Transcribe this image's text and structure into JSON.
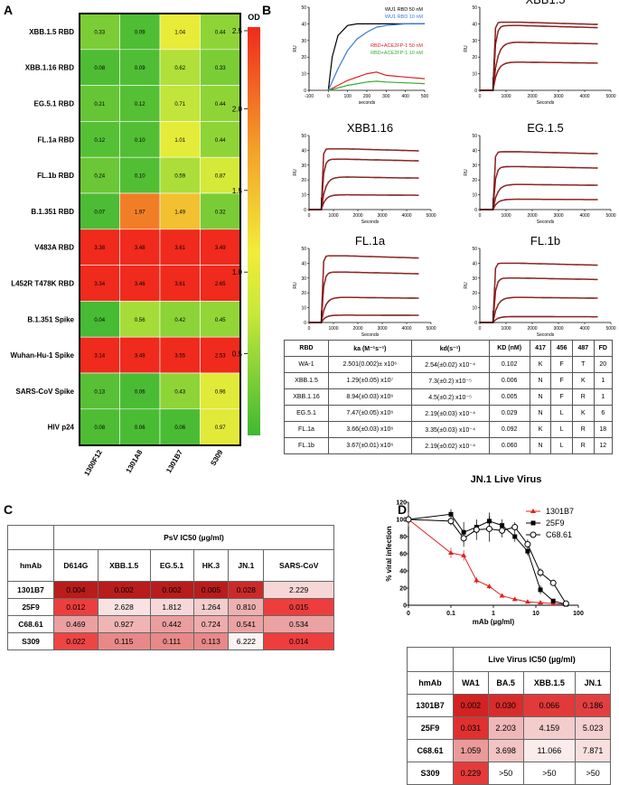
{
  "panels": {
    "a": "A",
    "b": "B",
    "c": "C",
    "d": "D"
  },
  "heatmap": {
    "legend_title": "OD",
    "legend_ticks": [
      "2.5",
      "2.0",
      "1.5",
      "1.0",
      "0.5"
    ],
    "legend_tick_values": [
      2.5,
      2.0,
      1.5,
      1.0,
      0.5
    ],
    "columns": [
      "1300F12",
      "1301A8",
      "1301B7",
      "S309"
    ],
    "rows": [
      "XBB.1.5 RBD",
      "XBB.1.16 RBD",
      "EG.5.1 RBD",
      "FL.1a RBD",
      "FL.1b RBD",
      "B.1.351 RBD",
      "V483A RBD",
      "L452R T478K RBD",
      "B.1.351 Spike",
      "Wuhan-Hu-1 Spike",
      "SARS-CoV Spike",
      "HIV p24"
    ],
    "values": [
      [
        "0.33",
        "0.09",
        "1.04",
        "0.44"
      ],
      [
        "0.08",
        "0.09",
        "0.62",
        "0.33"
      ],
      [
        "0.21",
        "0.12",
        "0.71",
        "0.44"
      ],
      [
        "0.12",
        "0.10",
        "1.01",
        "0.44"
      ],
      [
        "0.24",
        "0.10",
        "0.59",
        "0.87"
      ],
      [
        "0.07",
        "1.97",
        "1.49",
        "0.32"
      ],
      [
        "3.38",
        "3.48",
        "3.61",
        "3.49"
      ],
      [
        "3.34",
        "3.46",
        "3.61",
        "2.65"
      ],
      [
        "0.04",
        "0.56",
        "0.42",
        "0.45"
      ],
      [
        "3.14",
        "3.48",
        "3.55",
        "2.53"
      ],
      [
        "0.13",
        "0.06",
        "0.43",
        "0.96"
      ],
      [
        "0.08",
        "0.06",
        "0.06",
        "0.97"
      ]
    ]
  },
  "spr": {
    "axis_y": "RU",
    "axis_x_first": "seconds",
    "axis_x": "Seconds",
    "plots": [
      {
        "title": "",
        "legend": [
          "WU1 RBD 50 nM",
          "WU1 RBD 10 nM",
          "RBD+ACE2FP-1 50 nM",
          "RBD+ACE2FP-1 10 nM"
        ],
        "legend_colors": [
          "#000000",
          "#3a78d6",
          "#e02020",
          "#2fae2f"
        ],
        "xticks": [
          "-100",
          "0",
          "100",
          "200",
          "300",
          "400",
          "500"
        ],
        "yticks": [
          "0",
          "10",
          "20",
          "30",
          "40",
          "50"
        ]
      },
      {
        "title": "XBB1.5",
        "xticks": [
          "0",
          "1000",
          "2000",
          "3000",
          "4000",
          "5000"
        ],
        "yticks": [
          "0",
          "10",
          "20",
          "30",
          "40",
          "50"
        ]
      },
      {
        "title": "XBB1.16",
        "xticks": [
          "0",
          "1000",
          "2000",
          "3000",
          "4000",
          "5000"
        ],
        "yticks": [
          "0",
          "10",
          "20",
          "30",
          "40",
          "50"
        ]
      },
      {
        "title": "EG.1.5",
        "xticks": [
          "0",
          "1000",
          "2000",
          "3000",
          "4000",
          "5000"
        ],
        "yticks": [
          "0",
          "10",
          "20",
          "30",
          "40",
          "50"
        ]
      },
      {
        "title": "FL.1a",
        "xticks": [
          "0",
          "1000",
          "2000",
          "3000",
          "4000",
          "5000"
        ],
        "yticks": [
          "0",
          "10",
          "20",
          "30",
          "40",
          "50"
        ]
      },
      {
        "title": "FL.1b",
        "xticks": [
          "0",
          "1000",
          "2000",
          "3000",
          "4000",
          "5000"
        ],
        "yticks": [
          "0",
          "10",
          "20",
          "30",
          "40",
          "50"
        ]
      }
    ],
    "table": {
      "headers": [
        "RBD",
        "ka (M⁻¹s⁻¹)",
        "kd(s⁻¹)",
        "KD (nM)",
        "417",
        "456",
        "487",
        "FD"
      ],
      "rows": [
        [
          "WA-1",
          "2.501(0.002)± x10⁶",
          "2.54(±0.02) x10⁻⁴",
          "0.102",
          "K",
          "F",
          "T",
          "20"
        ],
        [
          "XBB.1.5",
          "1.29(±0.05) x10⁷",
          "7.3(±0.2) x10⁻⁵",
          "0.006",
          "N",
          "F",
          "K",
          "1"
        ],
        [
          "XBB.1.16",
          "8.94(±0.03) x10⁶",
          "4.5(±0.2) x10⁻⁵",
          "0.005",
          "N",
          "F",
          "R",
          "1"
        ],
        [
          "EG.5.1",
          "7.47(±0.05) x10⁶",
          "2.19(±0.03) x10⁻⁴",
          "0.029",
          "N",
          "L",
          "K",
          "6"
        ],
        [
          "FL.1a",
          "3.66(±0.03) x10⁶",
          "3.35(±0.03) x10⁻⁴",
          "0.092",
          "K",
          "L",
          "R",
          "18"
        ],
        [
          "FL.1b",
          "3.67(±0.01) x10⁶",
          "2.19(±0.02) x10⁻⁴",
          "0.060",
          "N",
          "L",
          "R",
          "12"
        ]
      ]
    }
  },
  "psv": {
    "header": "PsV IC50 (µg/ml)",
    "row_header": "hmAb",
    "columns": [
      "D614G",
      "XBB.1.5",
      "EG.5.1",
      "HK.3",
      "JN.1",
      "SARS-CoV"
    ],
    "rows": [
      {
        "name": "1301B7",
        "values": [
          "0.004",
          "0.002",
          "0.002",
          "0.005",
          "0.028",
          "2.229"
        ],
        "colors": [
          "#b81c1c",
          "#b81c1c",
          "#b81c1c",
          "#b81c1c",
          "#cc2a2a",
          "#f6d6d6"
        ]
      },
      {
        "name": "25F9",
        "values": [
          "0.012",
          "2.628",
          "1.812",
          "1.264",
          "0.810",
          "0.015"
        ],
        "colors": [
          "#ee3d3d",
          "#f8e2e2",
          "#f6d8d8",
          "#f3cccc",
          "#eeb0b0",
          "#ee3d3d"
        ]
      },
      {
        "name": "C68.61",
        "values": [
          "0.469",
          "0.927",
          "0.442",
          "0.724",
          "0.541",
          "0.534"
        ],
        "colors": [
          "#eaa0a0",
          "#efb4b4",
          "#ea9e9e",
          "#eeacac",
          "#eaa2a2",
          "#eaa2a2"
        ]
      },
      {
        "name": "S309",
        "values": [
          "0.022",
          "0.115",
          "0.111",
          "0.113",
          "6.222",
          "0.014"
        ],
        "colors": [
          "#ef4444",
          "#e88888",
          "#e88888",
          "#e88888",
          "#fdf3f3",
          "#ee3d3d"
        ]
      }
    ]
  },
  "jn1": {
    "title": "JN.1 Live Virus",
    "ylabel": "% viral infection",
    "xlabel": "mAb (µg/ml)",
    "yticks": [
      "0",
      "20",
      "40",
      "60",
      "80",
      "100",
      "120"
    ],
    "xticks": [
      "0",
      "0.1",
      "1",
      "10",
      "100"
    ],
    "legend": [
      "1301B7",
      "25F9",
      "C68.61"
    ],
    "table": {
      "header": "Live Virus  IC50 (µg/ml)",
      "row_header": "hmAb",
      "columns": [
        "WA1",
        "BA.5",
        "XBB.1.5",
        "JN.1"
      ],
      "rows": [
        {
          "name": "1301B7",
          "values": [
            "0.002",
            "0.030",
            "0.066",
            "0.186"
          ],
          "colors": [
            "#d22222",
            "#d82c2c",
            "#e23a3a",
            "#e24040"
          ]
        },
        {
          "name": "25F9",
          "values": [
            "0.031",
            "2.203",
            "4.159",
            "5.023"
          ],
          "colors": [
            "#e13030",
            "#efb8b8",
            "#f3cccc",
            "#f4d0d0"
          ]
        },
        {
          "name": "C68.61",
          "values": [
            "1.059",
            "3.698",
            "11.066",
            "7.871"
          ],
          "colors": [
            "#ea9a9a",
            "#f2c4c4",
            "#fbecec",
            "#f8e0e0"
          ]
        },
        {
          "name": "S309",
          "values": [
            "0.229",
            ">50",
            ">50",
            ">50"
          ],
          "colors": [
            "#e53a3a",
            "#ffffff",
            "#ffffff",
            "#ffffff"
          ]
        }
      ]
    }
  },
  "chart_data": [
    {
      "type": "heatmap",
      "title": "",
      "colorbar_label": "OD",
      "colorbar_range": [
        0,
        2.5
      ],
      "x": [
        "1300F12",
        "1301A8",
        "1301B7",
        "S309"
      ],
      "y": [
        "XBB.1.5 RBD",
        "XBB.1.16 RBD",
        "EG.5.1 RBD",
        "FL.1a RBD",
        "FL.1b RBD",
        "B.1.351 RBD",
        "V483A RBD",
        "L452R T478K RBD",
        "B.1.351 Spike",
        "Wuhan-Hu-1 Spike",
        "SARS-CoV Spike",
        "HIV p24"
      ],
      "values": [
        [
          0.33,
          0.09,
          1.04,
          0.44
        ],
        [
          0.08,
          0.09,
          0.62,
          0.33
        ],
        [
          0.21,
          0.12,
          0.71,
          0.44
        ],
        [
          0.12,
          0.1,
          1.01,
          0.44
        ],
        [
          0.24,
          0.1,
          0.59,
          0.87
        ],
        [
          0.07,
          1.97,
          1.49,
          0.32
        ],
        [
          3.38,
          3.48,
          3.61,
          3.49
        ],
        [
          3.34,
          3.46,
          3.61,
          2.65
        ],
        [
          0.04,
          0.56,
          0.42,
          0.45
        ],
        [
          3.14,
          3.48,
          3.55,
          2.53
        ],
        [
          0.13,
          0.06,
          0.43,
          0.96
        ],
        [
          0.08,
          0.06,
          0.06,
          0.97
        ]
      ]
    },
    {
      "type": "line",
      "title": "",
      "xlabel": "seconds",
      "ylabel": "RU",
      "xlim": [
        -100,
        500
      ],
      "ylim": [
        0,
        50
      ],
      "series": [
        {
          "name": "WU1 RBD 50 nM",
          "color": "#000000",
          "x": [
            0,
            20,
            50,
            100,
            150,
            200,
            300,
            400,
            500
          ],
          "y": [
            0,
            20,
            33,
            39,
            40,
            40,
            40,
            40,
            40
          ]
        },
        {
          "name": "WU1 RBD 10 nM",
          "color": "#3a78d6",
          "x": [
            0,
            50,
            100,
            150,
            200,
            250,
            300,
            400,
            500
          ],
          "y": [
            0,
            13,
            24,
            31,
            35,
            38,
            39,
            40,
            40
          ]
        },
        {
          "name": "RBD+ACE2FP-1 50 nM",
          "color": "#e02020",
          "x": [
            0,
            100,
            200,
            250,
            300,
            400,
            500
          ],
          "y": [
            0,
            6,
            10,
            11,
            9,
            8,
            7
          ]
        },
        {
          "name": "RBD+ACE2FP-1 10 nM",
          "color": "#2fae2f",
          "x": [
            0,
            100,
            200,
            250,
            300,
            400,
            500
          ],
          "y": [
            0,
            3,
            5,
            5.5,
            5,
            4.5,
            4
          ]
        }
      ]
    },
    {
      "type": "line",
      "title": "XBB1.5",
      "xlabel": "Seconds",
      "ylabel": "RU",
      "xlim": [
        0,
        5000
      ],
      "ylim": [
        0,
        50
      ],
      "plateaus": [
        41,
        39,
        29,
        17
      ]
    },
    {
      "type": "line",
      "title": "XBB1.16",
      "xlabel": "Seconds",
      "ylabel": "RU",
      "xlim": [
        0,
        5000
      ],
      "ylim": [
        0,
        50
      ],
      "plateaus": [
        41,
        34,
        22,
        10
      ]
    },
    {
      "type": "line",
      "title": "EG.1.5",
      "xlabel": "Seconds",
      "ylabel": "RU",
      "xlim": [
        0,
        5000
      ],
      "ylim": [
        0,
        50
      ],
      "plateaus": [
        39,
        29,
        17,
        7
      ]
    },
    {
      "type": "line",
      "title": "FL.1a",
      "xlabel": "Seconds",
      "ylabel": "RU",
      "xlim": [
        0,
        5000
      ],
      "ylim": [
        0,
        50
      ],
      "plateaus": [
        45,
        34,
        17,
        5
      ]
    },
    {
      "type": "line",
      "title": "FL.1b",
      "xlabel": "Seconds",
      "ylabel": "RU",
      "xlim": [
        0,
        5000
      ],
      "ylim": [
        0,
        50
      ],
      "plateaus": [
        40,
        30,
        17,
        4
      ]
    },
    {
      "type": "line",
      "title": "JN.1 Live Virus",
      "xlabel": "mAb (µg/ml)",
      "ylabel": "% viral infection",
      "xscale": "log",
      "ylim": [
        0,
        120
      ],
      "series": [
        {
          "name": "1301B7",
          "color": "#e02020",
          "marker": "triangle",
          "x": [
            0.01,
            0.1,
            0.2,
            0.4,
            0.8,
            1.6,
            3.2,
            6.4,
            12.8,
            25.6,
            51.2
          ],
          "y": [
            100,
            61,
            58,
            29,
            22,
            11,
            7,
            4,
            3,
            2,
            1
          ],
          "err": [
            8,
            6,
            6,
            4,
            3,
            2,
            2,
            1,
            1,
            1,
            1
          ]
        },
        {
          "name": "25F9",
          "color": "#000000",
          "marker": "square",
          "x": [
            0.01,
            0.1,
            0.2,
            0.4,
            0.8,
            1.6,
            3.2,
            6.4,
            12.8,
            25.6,
            51.2
          ],
          "y": [
            100,
            106,
            85,
            91,
            98,
            93,
            80,
            63,
            18,
            5,
            1
          ],
          "err": [
            5,
            6,
            12,
            8,
            10,
            7,
            6,
            5,
            5,
            2,
            1
          ]
        },
        {
          "name": "C68.61",
          "color": "#000000",
          "marker": "circle-open",
          "x": [
            0.01,
            0.1,
            0.2,
            0.4,
            0.8,
            1.6,
            3.2,
            6.4,
            12.8,
            25.6,
            51.2
          ],
          "y": [
            100,
            98,
            78,
            88,
            89,
            87,
            91,
            71,
            38,
            26,
            2
          ],
          "err": [
            5,
            5,
            10,
            12,
            15,
            8,
            6,
            6,
            5,
            3,
            1
          ]
        }
      ]
    }
  ]
}
